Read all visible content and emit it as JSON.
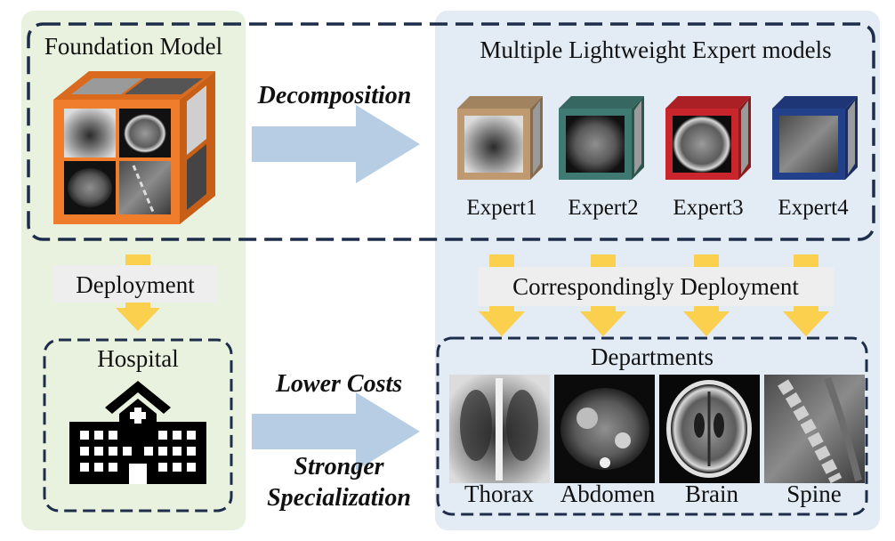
{
  "left_panel": {
    "title": "Foundation Model",
    "deployment_label": "Deployment",
    "hospital_title": "Hospital"
  },
  "right_panel": {
    "title": "Multiple Lightweight Expert models",
    "experts": [
      "Expert1",
      "Expert2",
      "Expert3",
      "Expert4"
    ],
    "expert_colors": [
      "#bf9a70",
      "#3f7a72",
      "#c8262c",
      "#23408a"
    ],
    "deployment_label": "Correspondingly Deployment",
    "departments_title": "Departments",
    "departments": [
      "Thorax",
      "Abdomen",
      "Brain",
      "Spine"
    ]
  },
  "arrows": {
    "decomposition": "Decomposition",
    "lower_costs": "Lower Costs",
    "stronger_specialization_line1": "Stronger",
    "stronger_specialization_line2": "Specialization"
  },
  "colors": {
    "left_bg": "#e9f2df",
    "right_bg": "#e3ebf5",
    "dashed_border": "#1e2d4a",
    "big_arrow": "#b7cde3",
    "deploy_arrow": "#fad04e",
    "label_bg": "#eeeeee",
    "foundation_cube": "#ef7d2c"
  }
}
